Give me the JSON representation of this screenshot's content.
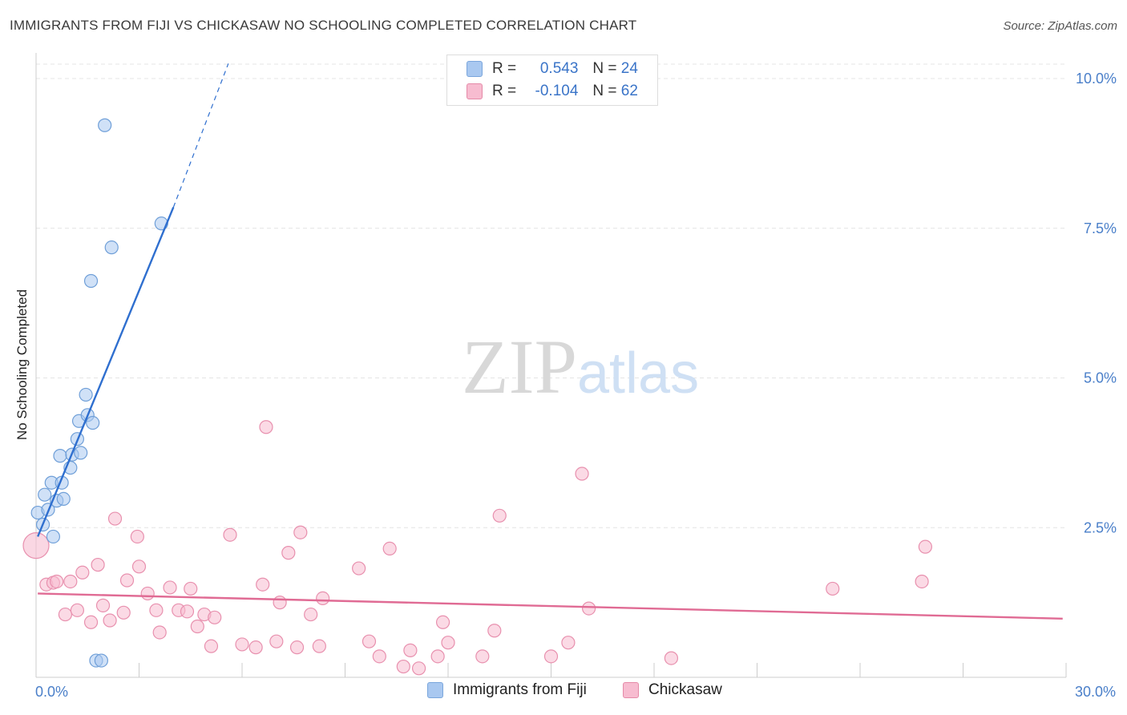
{
  "title": "IMMIGRANTS FROM FIJI VS CHICKASAW NO SCHOOLING COMPLETED CORRELATION CHART",
  "source": "Source: ZipAtlas.com",
  "watermark": {
    "zip": "ZIP",
    "atlas": "atlas"
  },
  "legend": {
    "rows": [
      {
        "r_label": "R =",
        "r_value": "0.543",
        "n_label": "N =",
        "n_value": "24",
        "color": "#a9c8f0",
        "border": "#7aa6dc"
      },
      {
        "r_label": "R =",
        "r_value": "-0.104",
        "n_label": "N =",
        "n_value": "62",
        "color": "#f7bcd0",
        "border": "#e58aa8"
      }
    ]
  },
  "bottom_legend": [
    {
      "label": "Immigrants from Fiji",
      "color": "#a9c8f0",
      "border": "#7aa6dc"
    },
    {
      "label": "Chickasaw",
      "color": "#f7bcd0",
      "border": "#e58aa8"
    }
  ],
  "chart_data": {
    "type": "scatter",
    "title": "IMMIGRANTS FROM FIJI VS CHICKASAW NO SCHOOLING COMPLETED CORRELATION CHART",
    "xlabel": "",
    "ylabel": "No Schooling Completed",
    "xlim": [
      0,
      30
    ],
    "ylim": [
      0,
      10
    ],
    "x_tick_labels": [
      {
        "value": 0,
        "label": "0.0%"
      },
      {
        "value": 30,
        "label": "30.0%"
      }
    ],
    "y_tick_labels": [
      {
        "value": 2.5,
        "label": "2.5%"
      },
      {
        "value": 5.0,
        "label": "5.0%"
      },
      {
        "value": 7.5,
        "label": "7.5%"
      },
      {
        "value": 10.0,
        "label": "10.0%"
      }
    ],
    "grid": true,
    "series": [
      {
        "name": "Immigrants from Fiji",
        "color": "#a9c8f0",
        "stroke": "#6f9fd8",
        "trend_color": "#2f6fcf",
        "trend": {
          "x0": 0.05,
          "y0": 2.35,
          "x1": 4.0,
          "y1": 7.85,
          "dash_to_x": 5.6,
          "dash_to_y": 10.25
        },
        "points": [
          [
            0.05,
            2.75
          ],
          [
            0.2,
            2.55
          ],
          [
            0.25,
            3.05
          ],
          [
            0.35,
            2.8
          ],
          [
            0.45,
            3.25
          ],
          [
            0.5,
            2.35
          ],
          [
            0.6,
            2.95
          ],
          [
            0.7,
            3.7
          ],
          [
            0.75,
            3.25
          ],
          [
            0.8,
            2.98
          ],
          [
            1.0,
            3.5
          ],
          [
            1.05,
            3.72
          ],
          [
            1.2,
            3.98
          ],
          [
            1.25,
            4.28
          ],
          [
            1.3,
            3.75
          ],
          [
            1.45,
            4.72
          ],
          [
            1.5,
            4.38
          ],
          [
            1.65,
            4.25
          ],
          [
            1.75,
            0.28
          ],
          [
            1.9,
            0.28
          ],
          [
            1.6,
            6.62
          ],
          [
            2.0,
            9.22
          ],
          [
            2.2,
            7.18
          ],
          [
            3.65,
            7.58
          ]
        ]
      },
      {
        "name": "Chickasaw",
        "color": "#f7bcd0",
        "stroke": "#e890ae",
        "trend_color": "#e06b94",
        "trend": {
          "x0": 0.05,
          "y0": 1.4,
          "x1": 29.9,
          "y1": 0.98
        },
        "points": [
          [
            0.0,
            2.2
          ],
          [
            0.3,
            1.55
          ],
          [
            0.5,
            1.58
          ],
          [
            0.6,
            1.6
          ],
          [
            0.85,
            1.05
          ],
          [
            1.0,
            1.6
          ],
          [
            1.2,
            1.12
          ],
          [
            1.35,
            1.75
          ],
          [
            1.6,
            0.92
          ],
          [
            1.8,
            1.88
          ],
          [
            1.95,
            1.2
          ],
          [
            2.15,
            0.95
          ],
          [
            2.3,
            2.65
          ],
          [
            2.55,
            1.08
          ],
          [
            2.65,
            1.62
          ],
          [
            2.95,
            2.35
          ],
          [
            3.0,
            1.85
          ],
          [
            3.25,
            1.4
          ],
          [
            3.5,
            1.12
          ],
          [
            3.6,
            0.75
          ],
          [
            3.9,
            1.5
          ],
          [
            4.15,
            1.12
          ],
          [
            4.4,
            1.1
          ],
          [
            4.5,
            1.48
          ],
          [
            4.7,
            0.85
          ],
          [
            4.9,
            1.05
          ],
          [
            5.1,
            0.52
          ],
          [
            5.2,
            1.0
          ],
          [
            5.65,
            2.38
          ],
          [
            6.0,
            0.55
          ],
          [
            6.4,
            0.5
          ],
          [
            6.6,
            1.55
          ],
          [
            6.7,
            4.18
          ],
          [
            7.0,
            0.6
          ],
          [
            7.1,
            1.25
          ],
          [
            7.35,
            2.08
          ],
          [
            7.6,
            0.5
          ],
          [
            7.7,
            2.42
          ],
          [
            8.0,
            1.05
          ],
          [
            8.25,
            0.52
          ],
          [
            8.35,
            1.32
          ],
          [
            9.4,
            1.82
          ],
          [
            9.7,
            0.6
          ],
          [
            10.0,
            0.35
          ],
          [
            10.3,
            2.15
          ],
          [
            10.7,
            0.18
          ],
          [
            10.9,
            0.45
          ],
          [
            11.15,
            0.15
          ],
          [
            11.7,
            0.35
          ],
          [
            11.85,
            0.92
          ],
          [
            12.0,
            0.58
          ],
          [
            13.0,
            0.35
          ],
          [
            13.35,
            0.78
          ],
          [
            13.5,
            2.7
          ],
          [
            15.0,
            0.35
          ],
          [
            15.5,
            0.58
          ],
          [
            15.9,
            3.4
          ],
          [
            16.1,
            1.15
          ],
          [
            18.5,
            0.32
          ],
          [
            23.2,
            1.48
          ],
          [
            25.8,
            1.6
          ],
          [
            25.9,
            2.18
          ]
        ]
      }
    ]
  }
}
